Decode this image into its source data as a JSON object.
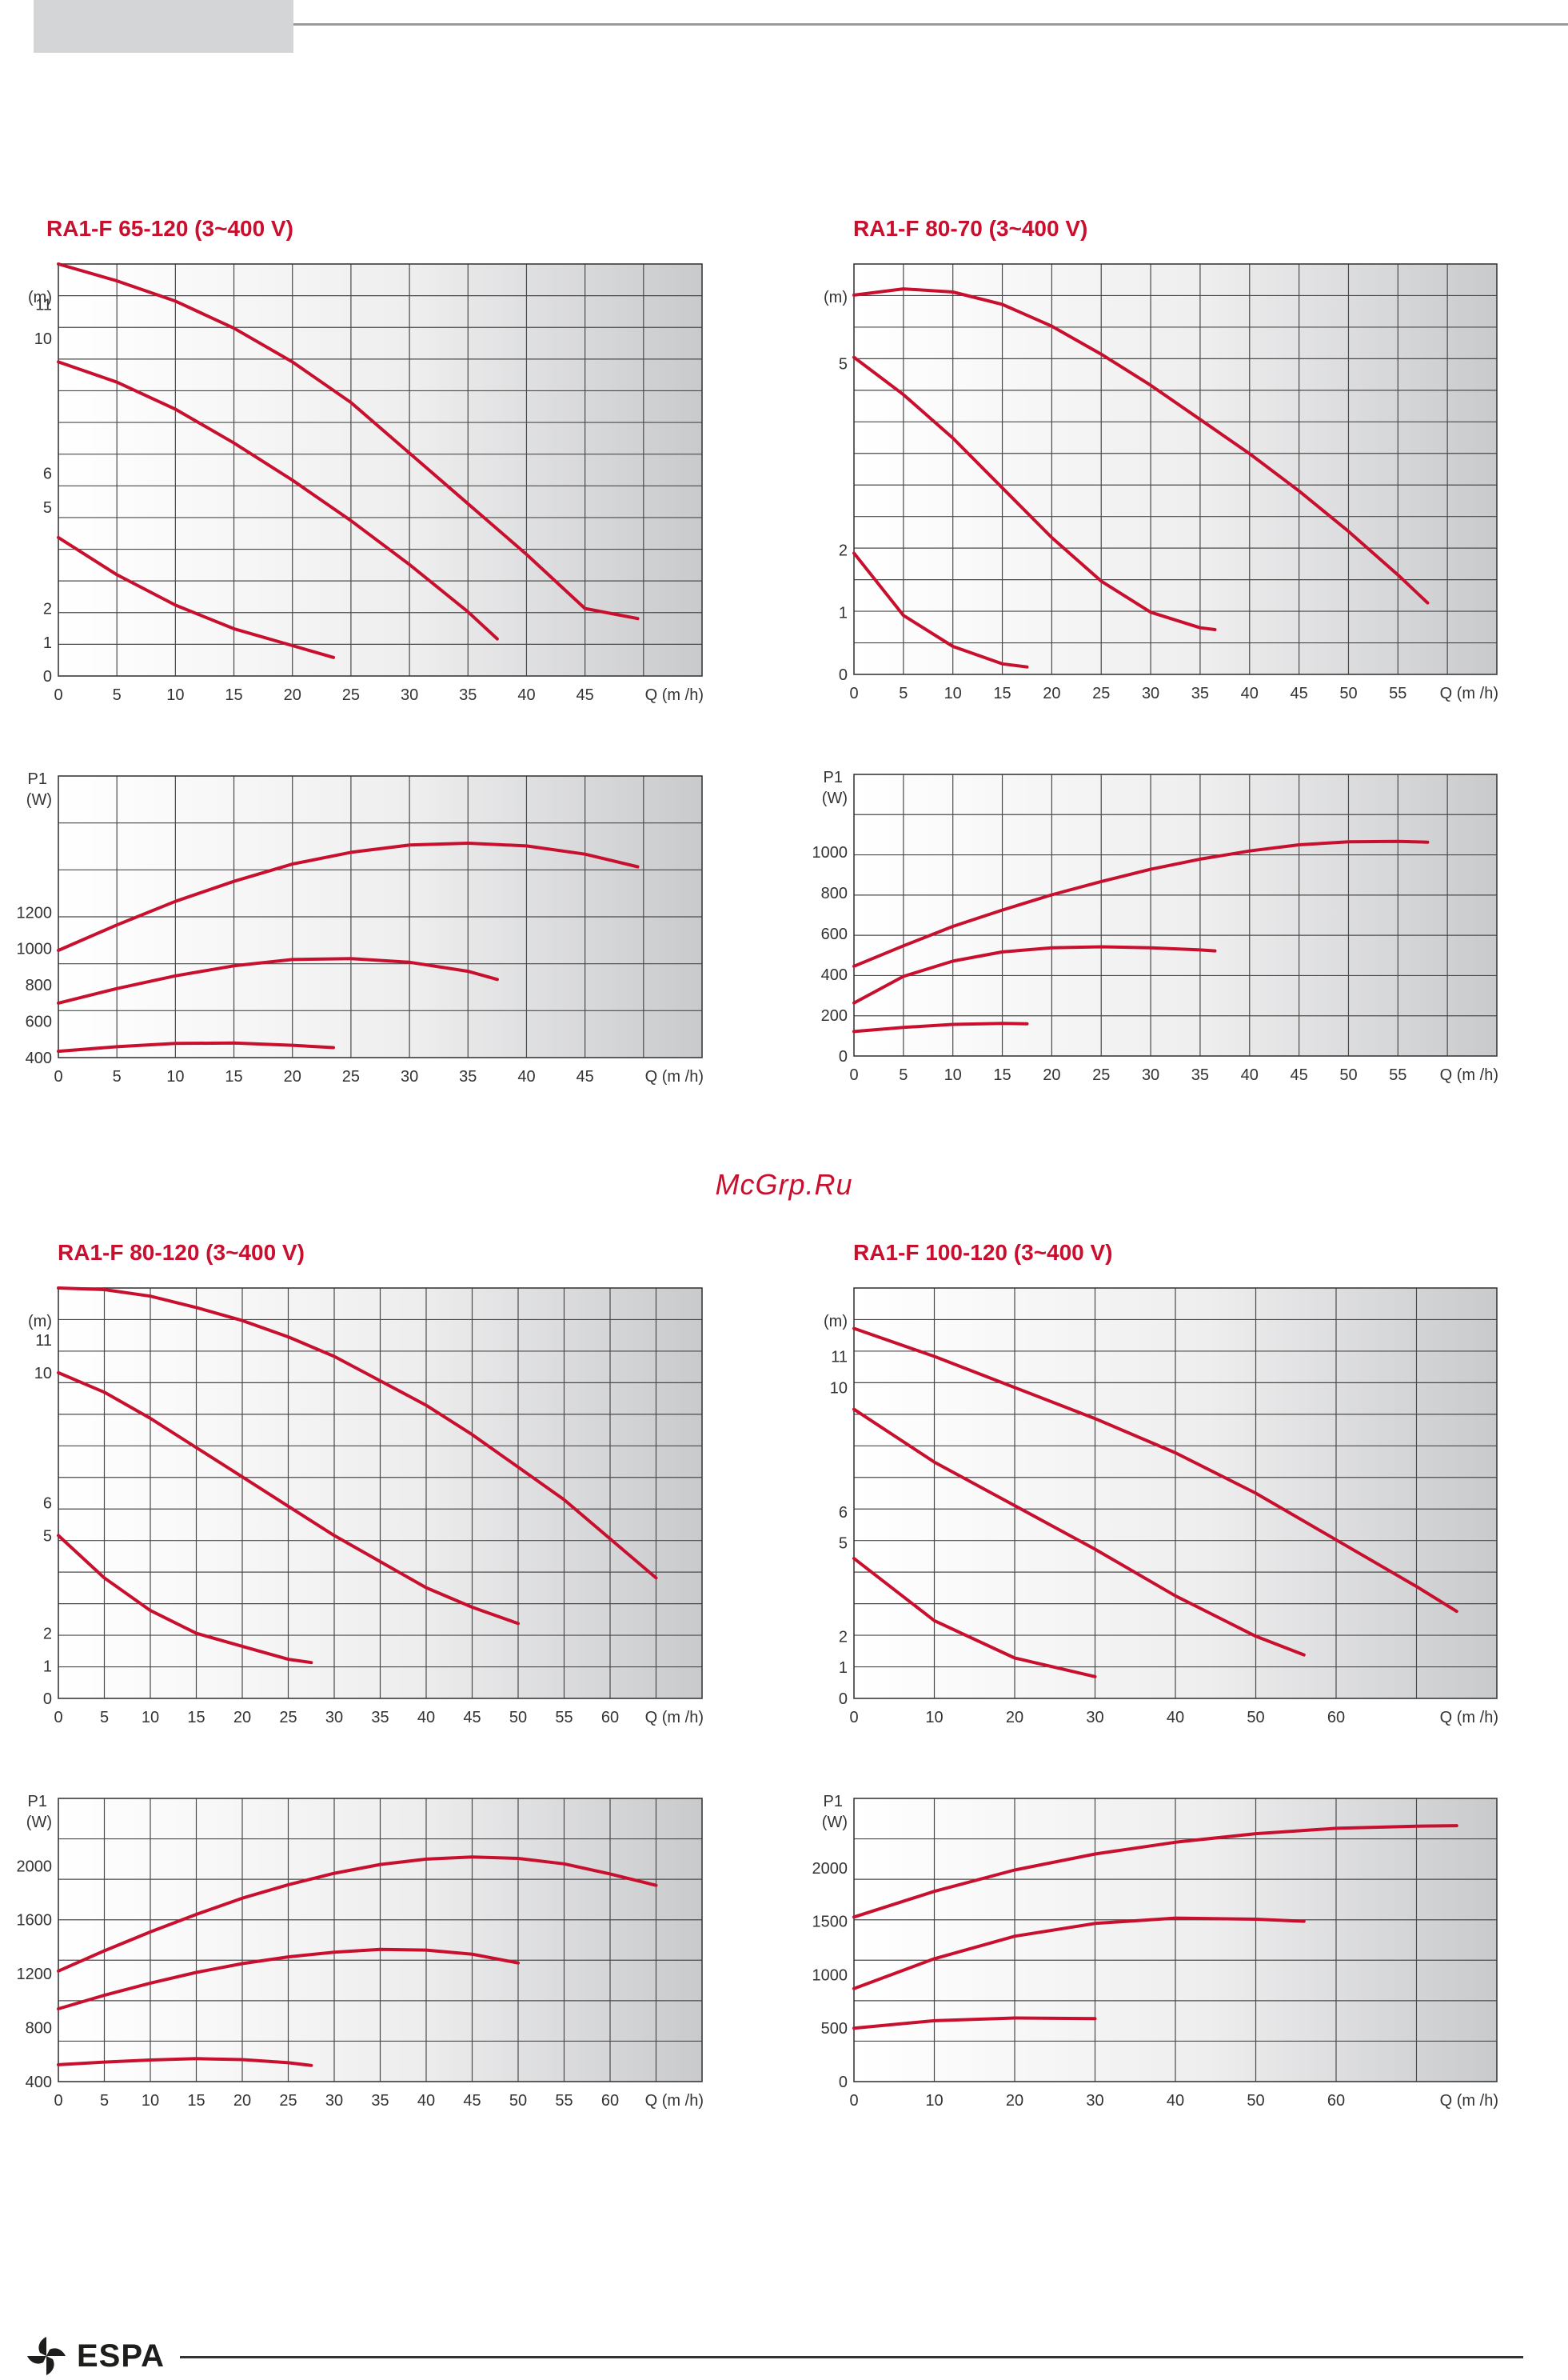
{
  "page": {
    "watermark": "McGrp.Ru",
    "brand": "ESPA"
  },
  "chart_data": [
    {
      "id": "c1h",
      "type": "line",
      "title": "RA1-F 65-120 (3~400 V)",
      "ylabel": "(m)",
      "xlabel": "Q (m /h)",
      "xlim": [
        0,
        55
      ],
      "ylim": [
        0,
        12.2
      ],
      "x_ticks": [
        0,
        5,
        10,
        15,
        20,
        25,
        30,
        35,
        40,
        45
      ],
      "y_ticks": [
        0,
        1,
        2,
        5,
        6,
        10,
        11
      ],
      "series": [
        {
          "x": [
            0,
            5,
            10,
            15,
            20,
            25,
            30,
            35,
            40,
            45,
            49.5
          ],
          "y": [
            12.2,
            11.7,
            11.1,
            10.3,
            9.3,
            8.1,
            6.6,
            5.1,
            3.6,
            2.0,
            1.7
          ]
        },
        {
          "x": [
            0,
            5,
            10,
            15,
            20,
            25,
            30,
            35,
            37.5
          ],
          "y": [
            9.3,
            8.7,
            7.9,
            6.9,
            5.8,
            4.6,
            3.3,
            1.9,
            1.1
          ]
        },
        {
          "x": [
            0,
            5,
            10,
            15,
            20,
            23.5
          ],
          "y": [
            4.1,
            3.0,
            2.1,
            1.4,
            0.9,
            0.55
          ]
        }
      ]
    },
    {
      "id": "c1p",
      "type": "line",
      "title": "",
      "ylabel": "P1 (W)",
      "xlabel": "Q (m /h)",
      "xlim": [
        0,
        55
      ],
      "ylim": [
        400,
        1950
      ],
      "x_ticks": [
        0,
        5,
        10,
        15,
        20,
        25,
        30,
        35,
        40,
        45
      ],
      "y_ticks": [
        400,
        600,
        800,
        1000,
        1200
      ],
      "series": [
        {
          "x": [
            0,
            5,
            10,
            15,
            20,
            25,
            30,
            35,
            40,
            45,
            49.5
          ],
          "y": [
            990,
            1130,
            1260,
            1370,
            1465,
            1530,
            1570,
            1580,
            1565,
            1520,
            1450
          ]
        },
        {
          "x": [
            0,
            5,
            10,
            15,
            20,
            25,
            30,
            35,
            37.5
          ],
          "y": [
            700,
            780,
            850,
            905,
            940,
            945,
            925,
            875,
            830
          ]
        },
        {
          "x": [
            0,
            5,
            10,
            15,
            20,
            23.5
          ],
          "y": [
            435,
            460,
            478,
            480,
            468,
            455
          ]
        }
      ]
    },
    {
      "id": "c2h",
      "type": "line",
      "title": "RA1-F 80-70 (3~400 V)",
      "ylabel": "(m)",
      "xlabel": "Q (m /h)",
      "xlim": [
        0,
        65
      ],
      "ylim": [
        0,
        6.6
      ],
      "x_ticks": [
        0,
        5,
        10,
        15,
        20,
        25,
        30,
        35,
        40,
        45,
        50,
        55
      ],
      "y_ticks": [
        0,
        1,
        2,
        5
      ],
      "series": [
        {
          "x": [
            0,
            5,
            10,
            15,
            20,
            25,
            30,
            35,
            40,
            45,
            50,
            55,
            58
          ],
          "y": [
            6.1,
            6.2,
            6.15,
            5.95,
            5.6,
            5.15,
            4.65,
            4.1,
            3.55,
            2.95,
            2.3,
            1.6,
            1.15
          ]
        },
        {
          "x": [
            0,
            5,
            10,
            15,
            20,
            25,
            30,
            35,
            36.5
          ],
          "y": [
            5.1,
            4.5,
            3.8,
            3.0,
            2.2,
            1.5,
            1.0,
            0.75,
            0.72
          ]
        },
        {
          "x": [
            0,
            5,
            10,
            15,
            17.5
          ],
          "y": [
            1.95,
            0.95,
            0.45,
            0.17,
            0.12
          ]
        }
      ]
    },
    {
      "id": "c2p",
      "type": "line",
      "title": "",
      "ylabel": "P1 (W)",
      "xlabel": "Q (m /h)",
      "xlim": [
        0,
        65
      ],
      "ylim": [
        0,
        1380
      ],
      "x_ticks": [
        0,
        5,
        10,
        15,
        20,
        25,
        30,
        35,
        40,
        45,
        50,
        55
      ],
      "y_ticks": [
        0,
        200,
        400,
        600,
        800,
        1000
      ],
      "series": [
        {
          "x": [
            0,
            5,
            10,
            15,
            20,
            25,
            30,
            35,
            40,
            45,
            50,
            55,
            58
          ],
          "y": [
            440,
            540,
            635,
            715,
            790,
            855,
            915,
            965,
            1005,
            1035,
            1050,
            1052,
            1048
          ]
        },
        {
          "x": [
            0,
            5,
            10,
            15,
            20,
            25,
            30,
            35,
            36.5
          ],
          "y": [
            260,
            390,
            465,
            510,
            530,
            535,
            530,
            520,
            515
          ]
        },
        {
          "x": [
            0,
            5,
            10,
            15,
            17.5
          ],
          "y": [
            120,
            140,
            155,
            160,
            158
          ]
        }
      ]
    },
    {
      "id": "c3h",
      "type": "line",
      "title": "RA1-F 80-120 (3~400 V)",
      "ylabel": "(m)",
      "xlabel": "Q (m /h)",
      "xlim": [
        0,
        70
      ],
      "ylim": [
        0,
        12.6
      ],
      "x_ticks": [
        0,
        5,
        10,
        15,
        20,
        25,
        30,
        35,
        40,
        45,
        50,
        55,
        60
      ],
      "y_ticks": [
        0,
        1,
        2,
        5,
        6,
        10,
        11
      ],
      "series": [
        {
          "x": [
            0,
            5,
            10,
            15,
            20,
            25,
            30,
            35,
            40,
            45,
            50,
            55,
            60,
            65
          ],
          "y": [
            12.6,
            12.55,
            12.35,
            12.0,
            11.6,
            11.1,
            10.5,
            9.75,
            9.0,
            8.1,
            7.1,
            6.1,
            4.9,
            3.7
          ]
        },
        {
          "x": [
            0,
            5,
            10,
            15,
            20,
            25,
            30,
            35,
            40,
            45,
            50
          ],
          "y": [
            10.0,
            9.4,
            8.6,
            7.7,
            6.8,
            5.9,
            5.0,
            4.2,
            3.4,
            2.8,
            2.3
          ]
        },
        {
          "x": [
            0,
            5,
            10,
            15,
            20,
            25,
            27.5
          ],
          "y": [
            5.0,
            3.7,
            2.7,
            2.0,
            1.6,
            1.2,
            1.1
          ]
        }
      ]
    },
    {
      "id": "c3p",
      "type": "line",
      "title": "",
      "ylabel": "P1 (W)",
      "xlabel": "Q (m /h)",
      "xlim": [
        0,
        70
      ],
      "ylim": [
        400,
        2500
      ],
      "x_ticks": [
        0,
        5,
        10,
        15,
        20,
        25,
        30,
        35,
        40,
        45,
        50,
        55,
        60
      ],
      "y_ticks": [
        400,
        800,
        1200,
        1600,
        2000
      ],
      "series": [
        {
          "x": [
            0,
            5,
            10,
            15,
            20,
            25,
            30,
            35,
            40,
            45,
            50,
            55,
            60,
            65
          ],
          "y": [
            1220,
            1370,
            1510,
            1640,
            1760,
            1860,
            1945,
            2010,
            2050,
            2065,
            2055,
            2015,
            1940,
            1855
          ]
        },
        {
          "x": [
            0,
            5,
            10,
            15,
            20,
            25,
            30,
            35,
            40,
            45,
            50
          ],
          "y": [
            940,
            1040,
            1130,
            1210,
            1275,
            1325,
            1360,
            1380,
            1375,
            1345,
            1280
          ]
        },
        {
          "x": [
            0,
            5,
            10,
            15,
            20,
            25,
            27.5
          ],
          "y": [
            525,
            545,
            560,
            570,
            563,
            540,
            520
          ]
        }
      ]
    },
    {
      "id": "c4h",
      "type": "line",
      "title": "RA1-F 100-120 (3~400 V)",
      "ylabel": "(m)",
      "xlabel": "Q (m /h)",
      "xlim": [
        0,
        80
      ],
      "ylim": [
        0,
        13.2
      ],
      "x_ticks": [
        0,
        10,
        20,
        30,
        40,
        50,
        60
      ],
      "y_ticks": [
        0,
        1,
        2,
        5,
        6,
        10,
        11
      ],
      "series": [
        {
          "x": [
            0,
            10,
            20,
            30,
            40,
            50,
            60,
            70,
            75
          ],
          "y": [
            11.9,
            11.0,
            10.0,
            9.0,
            7.9,
            6.6,
            5.1,
            3.6,
            2.8
          ]
        },
        {
          "x": [
            0,
            10,
            20,
            30,
            40,
            50,
            56
          ],
          "y": [
            9.3,
            7.6,
            6.2,
            4.8,
            3.3,
            2.0,
            1.4
          ]
        },
        {
          "x": [
            0,
            10,
            20,
            30
          ],
          "y": [
            4.5,
            2.5,
            1.3,
            0.7
          ]
        }
      ]
    },
    {
      "id": "c4p",
      "type": "line",
      "title": "",
      "ylabel": "P1 (W)",
      "xlabel": "Q (m /h)",
      "xlim": [
        0,
        80
      ],
      "ylim": [
        0,
        2650
      ],
      "x_ticks": [
        0,
        10,
        20,
        30,
        40,
        50,
        60
      ],
      "y_ticks": [
        0,
        500,
        1000,
        1500,
        2000
      ],
      "series": [
        {
          "x": [
            0,
            10,
            20,
            30,
            40,
            50,
            60,
            70,
            75
          ],
          "y": [
            1540,
            1780,
            1980,
            2130,
            2240,
            2320,
            2370,
            2390,
            2395
          ]
        },
        {
          "x": [
            0,
            10,
            20,
            30,
            40,
            50,
            56
          ],
          "y": [
            870,
            1150,
            1360,
            1480,
            1530,
            1520,
            1500
          ]
        },
        {
          "x": [
            0,
            10,
            20,
            30
          ],
          "y": [
            500,
            570,
            595,
            590
          ]
        }
      ]
    }
  ]
}
